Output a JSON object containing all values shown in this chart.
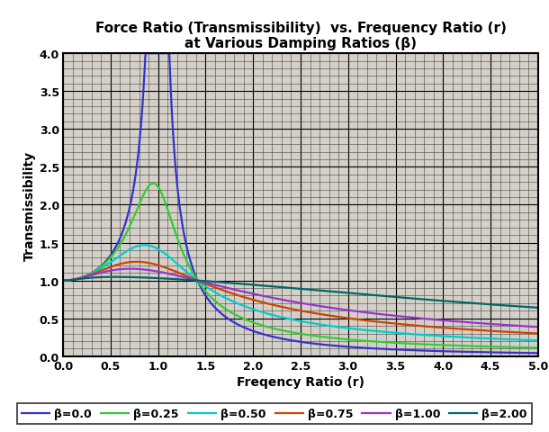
{
  "title_line1": "Force Ratio (Transmissibility)  vs. Frequency Ratio (r)",
  "title_line2": "at Various Damping Ratios (β)",
  "xlabel": "Freqency Ratio (r)",
  "ylabel": "Transmissibility",
  "xlim": [
    0.0,
    5.0
  ],
  "ylim": [
    0.0,
    4.0
  ],
  "xticks": [
    0.0,
    0.5,
    1.0,
    1.5,
    2.0,
    2.5,
    3.0,
    3.5,
    4.0,
    4.5,
    5.0
  ],
  "yticks": [
    0.0,
    0.5,
    1.0,
    1.5,
    2.0,
    2.5,
    3.0,
    3.5,
    4.0
  ],
  "damping_ratios": [
    0.0,
    0.25,
    0.5,
    0.75,
    1.0,
    2.0
  ],
  "line_colors": [
    "#3333CC",
    "#33CC33",
    "#00CCCC",
    "#CC4400",
    "#9933CC",
    "#006666"
  ],
  "legend_labels": [
    "β=0.0",
    "β=0.25",
    "β=0.50",
    "β=0.75",
    "β=1.00",
    "β=2.00"
  ],
  "bg_color": "#D4D0C8",
  "fig_bg_color": "#FFFFFF",
  "major_grid_color": "#000000",
  "minor_grid_color": "#555555",
  "line_width": 1.6,
  "title_fontsize": 11,
  "axis_label_fontsize": 10,
  "tick_fontsize": 9,
  "legend_fontsize": 9
}
